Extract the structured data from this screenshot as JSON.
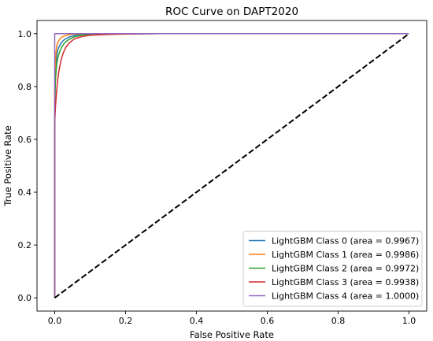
{
  "chart_data": {
    "type": "line",
    "title": "ROC Curve on DAPT2020",
    "xlabel": "False Positive Rate",
    "ylabel": "True Positive Rate",
    "xlim": [
      -0.05,
      1.05
    ],
    "ylim": [
      -0.05,
      1.05
    ],
    "xticks": [
      "0.0",
      "0.2",
      "0.4",
      "0.6",
      "0.8",
      "1.0"
    ],
    "yticks": [
      "0.0",
      "0.2",
      "0.4",
      "0.6",
      "0.8",
      "1.0"
    ],
    "grid": false,
    "legend_position": "lower-right",
    "diagonal": {
      "x": [
        0,
        1
      ],
      "y": [
        0,
        1
      ],
      "style": "dashed",
      "color": "#000000"
    },
    "series": [
      {
        "name": "LightGBM Class 0 (area = 0.9967)",
        "color": "#1f77b4",
        "x": [
          0,
          0,
          0.002,
          0.004,
          0.006,
          0.008,
          0.012,
          0.016,
          0.02,
          0.025,
          0.03,
          0.04,
          0.05,
          0.06,
          0.08,
          0.1,
          0.15,
          0.3,
          1
        ],
        "y": [
          0,
          0.7,
          0.84,
          0.89,
          0.92,
          0.935,
          0.95,
          0.96,
          0.968,
          0.975,
          0.98,
          0.987,
          0.991,
          0.994,
          0.997,
          0.998,
          0.999,
          1,
          1
        ]
      },
      {
        "name": "LightGBM Class 1 (area = 0.9986)",
        "color": "#ff7f0e",
        "x": [
          0,
          0,
          0.002,
          0.004,
          0.006,
          0.008,
          0.012,
          0.016,
          0.02,
          0.03,
          0.04,
          0.05,
          0.07,
          0.1,
          1
        ],
        "y": [
          0,
          0.78,
          0.9,
          0.935,
          0.955,
          0.965,
          0.975,
          0.982,
          0.987,
          0.993,
          0.996,
          0.998,
          0.999,
          1,
          1
        ]
      },
      {
        "name": "LightGBM Class 2 (area = 0.9972)",
        "color": "#2ca02c",
        "x": [
          0,
          0,
          0.002,
          0.004,
          0.006,
          0.01,
          0.015,
          0.02,
          0.025,
          0.03,
          0.04,
          0.05,
          0.06,
          0.08,
          0.1,
          0.15,
          0.2,
          1
        ],
        "y": [
          0,
          0.72,
          0.82,
          0.86,
          0.89,
          0.915,
          0.935,
          0.95,
          0.96,
          0.968,
          0.978,
          0.985,
          0.99,
          0.995,
          0.997,
          0.999,
          1,
          1
        ]
      },
      {
        "name": "LightGBM Class 3 (area = 0.9938)",
        "color": "#d62728",
        "x": [
          0,
          0,
          0.002,
          0.004,
          0.006,
          0.008,
          0.01,
          0.012,
          0.015,
          0.018,
          0.02,
          0.025,
          0.03,
          0.035,
          0.04,
          0.05,
          0.06,
          0.08,
          0.1,
          0.13,
          0.17,
          0.22,
          0.3,
          1
        ],
        "y": [
          0,
          0.66,
          0.72,
          0.76,
          0.79,
          0.82,
          0.84,
          0.86,
          0.88,
          0.9,
          0.91,
          0.93,
          0.945,
          0.955,
          0.963,
          0.975,
          0.983,
          0.99,
          0.994,
          0.996,
          0.998,
          0.999,
          1,
          1
        ]
      },
      {
        "name": "LightGBM Class 4 (area = 1.0000)",
        "color": "#9467bd",
        "x": [
          0,
          0,
          1
        ],
        "y": [
          0,
          1,
          1
        ]
      }
    ]
  }
}
